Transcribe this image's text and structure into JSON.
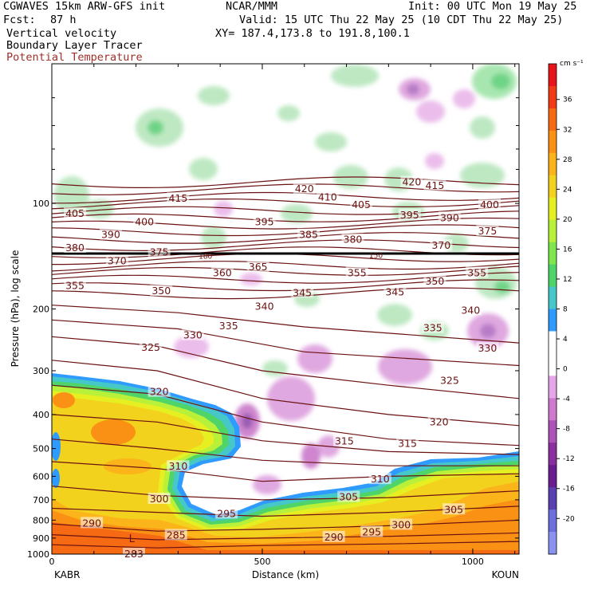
{
  "header": {
    "model": "CGWAVES 15km ARW-GFS init",
    "org": "NCAR/MMM",
    "init": "Init: 00 UTC Mon 19 May 25",
    "fcst_label": "Fcst:",
    "fcst_value": "87 h",
    "valid": "Valid: 15 UTC Thu 22 May 25 (10 CDT Thu 22 May 25)",
    "field1": "Vertical velocity",
    "field2": "Boundary Layer Tracer",
    "field3": "Potential Temperature",
    "xy": "XY= 187.4,173.8 to 191.8,100.1"
  },
  "colors": {
    "theta_contour": "#6b1212",
    "potential_temperature_label": "#a0302a"
  },
  "chart_data": {
    "type": "heatmap",
    "subtype": "vertical cross-section",
    "xlabel": "Distance (km)",
    "ylabel": "Pressure (hPa), log scale",
    "y_scale": "log",
    "x_range": [
      0,
      1110
    ],
    "y_range": [
      1000,
      40
    ],
    "x_ticks": [
      "0",
      "500",
      "1000"
    ],
    "x_end_labels": {
      "left": "KABR",
      "right": "KOUN"
    },
    "y_ticks": [
      100,
      200,
      300,
      400,
      500,
      600,
      700,
      800,
      900,
      1000
    ],
    "colorbar": {
      "units": "cm s⁻¹",
      "ticks": [
        36,
        32,
        28,
        24,
        20,
        16,
        12,
        8,
        4,
        0,
        -4,
        -8,
        -12,
        -16,
        -20
      ],
      "colors": [
        "#e8141c",
        "#f03a18",
        "#f66a14",
        "#fa9014",
        "#fbb41a",
        "#f3d21e",
        "#e6ef22",
        "#b9f03a",
        "#7fe64e",
        "#4fd46a",
        "#46c8c8",
        "#2f9bff",
        "#ffffff",
        "#ffffff",
        "#e7a6e7",
        "#cf7acf",
        "#ad52b8",
        "#8a2f9e",
        "#6a1d8c",
        "#5a3fb0",
        "#6a6fdd",
        "#8a94f0"
      ]
    },
    "theta_labels": [
      {
        "label": "420",
        "x": 600,
        "p": 91
      },
      {
        "label": "420",
        "x": 855,
        "p": 87
      },
      {
        "label": "415",
        "x": 300,
        "p": 97
      },
      {
        "label": "415",
        "x": 910,
        "p": 89
      },
      {
        "label": "410",
        "x": 655,
        "p": 96
      },
      {
        "label": "405",
        "x": 55,
        "p": 107
      },
      {
        "label": "405",
        "x": 735,
        "p": 101
      },
      {
        "label": "400",
        "x": 220,
        "p": 113
      },
      {
        "label": "400",
        "x": 1040,
        "p": 101
      },
      {
        "label": "395",
        "x": 505,
        "p": 113
      },
      {
        "label": "395",
        "x": 850,
        "p": 108
      },
      {
        "label": "390",
        "x": 140,
        "p": 123
      },
      {
        "label": "390",
        "x": 945,
        "p": 110
      },
      {
        "label": "385",
        "x": 610,
        "p": 123
      },
      {
        "label": "380",
        "x": 715,
        "p": 127
      },
      {
        "label": "380",
        "x": 55,
        "p": 134
      },
      {
        "label": "375",
        "x": 1035,
        "p": 120
      },
      {
        "label": "375",
        "x": 255,
        "p": 138
      },
      {
        "label": "370",
        "x": 155,
        "p": 146
      },
      {
        "label": "370",
        "x": 925,
        "p": 132
      },
      {
        "label": "365",
        "x": 490,
        "p": 152
      },
      {
        "label": "360",
        "x": 405,
        "p": 158
      },
      {
        "label": "355",
        "x": 55,
        "p": 172
      },
      {
        "label": "355",
        "x": 725,
        "p": 158
      },
      {
        "label": "355",
        "x": 1010,
        "p": 158
      },
      {
        "label": "350",
        "x": 260,
        "p": 178
      },
      {
        "label": "350",
        "x": 910,
        "p": 167
      },
      {
        "label": "345",
        "x": 595,
        "p": 180
      },
      {
        "label": "345",
        "x": 815,
        "p": 179
      },
      {
        "label": "340",
        "x": 505,
        "p": 197
      },
      {
        "label": "340",
        "x": 995,
        "p": 202
      },
      {
        "label": "335",
        "x": 420,
        "p": 224
      },
      {
        "label": "335",
        "x": 905,
        "p": 227
      },
      {
        "label": "330",
        "x": 335,
        "p": 238
      },
      {
        "label": "330",
        "x": 1035,
        "p": 259
      },
      {
        "label": "325",
        "x": 235,
        "p": 258
      },
      {
        "label": "325",
        "x": 945,
        "p": 320
      },
      {
        "label": "320",
        "x": 255,
        "p": 345
      },
      {
        "label": "320",
        "x": 920,
        "p": 420
      },
      {
        "label": "315",
        "x": 695,
        "p": 477
      },
      {
        "label": "315",
        "x": 845,
        "p": 485
      },
      {
        "label": "310",
        "x": 300,
        "p": 563
      },
      {
        "label": "310",
        "x": 780,
        "p": 612
      },
      {
        "label": "305",
        "x": 705,
        "p": 688
      },
      {
        "label": "305",
        "x": 955,
        "p": 747
      },
      {
        "label": "300",
        "x": 255,
        "p": 697
      },
      {
        "label": "300",
        "x": 830,
        "p": 826
      },
      {
        "label": "295",
        "x": 415,
        "p": 767
      },
      {
        "label": "295",
        "x": 760,
        "p": 866
      },
      {
        "label": "290",
        "x": 95,
        "p": 817
      },
      {
        "label": "290",
        "x": 670,
        "p": 895
      },
      {
        "label": "285",
        "x": 295,
        "p": 884
      },
      {
        "label": "283",
        "x": 195,
        "p": 1000
      }
    ],
    "extra_labels": [
      {
        "label": "L",
        "x": 190,
        "p": 906
      },
      {
        "label": "180",
        "x": 365,
        "p": 141
      },
      {
        "label": "150",
        "x": 770,
        "p": 140
      }
    ]
  }
}
